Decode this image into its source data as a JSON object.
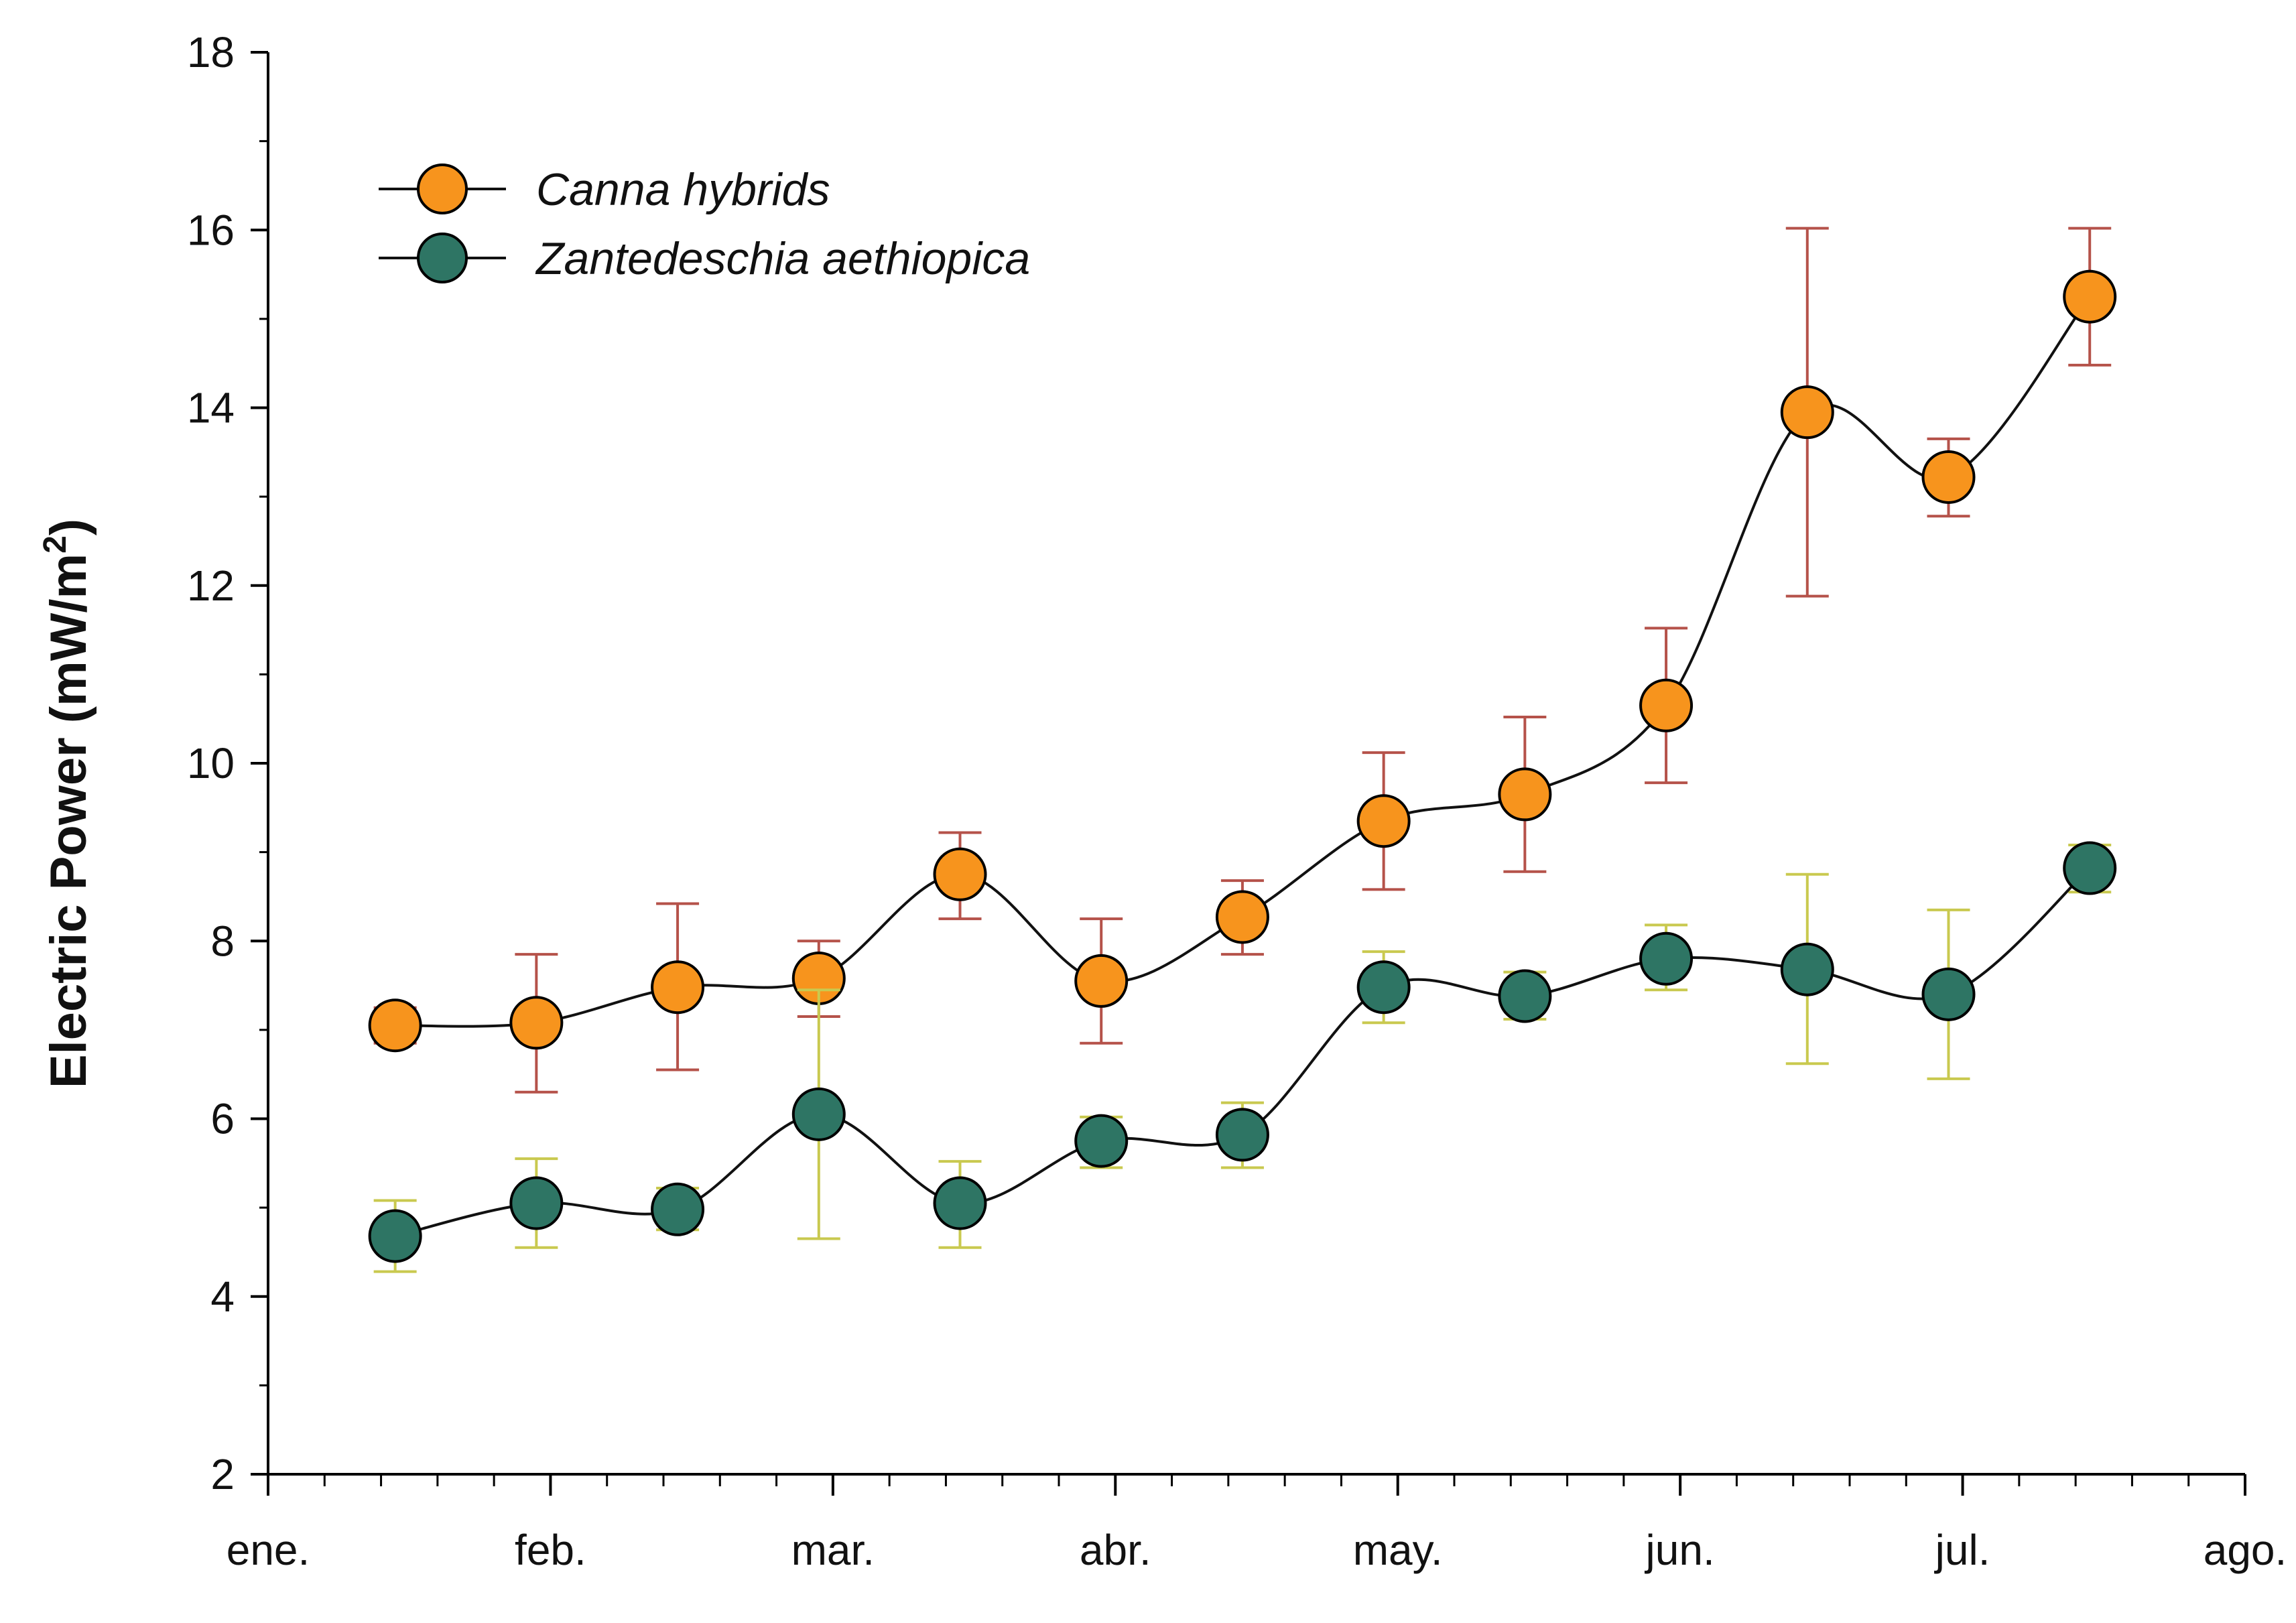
{
  "chart_data": {
    "type": "line",
    "title": "",
    "xlabel": "",
    "ylabel": "Electric Power (mW/m",
    "ylabel_sup": "2",
    "ylabel_close": ")",
    "ylim": [
      2,
      18
    ],
    "yticks": [
      2,
      4,
      6,
      8,
      10,
      12,
      14,
      16,
      18
    ],
    "x_range": [
      0,
      7
    ],
    "month_labels": [
      "ene.",
      "feb.",
      "mar.",
      "abr.",
      "may.",
      "jun.",
      "jul.",
      "ago."
    ],
    "legend_position": "top-left",
    "series": [
      {
        "name": "Canna hybrids",
        "color": "#f7941d",
        "error_color": "#b5524a",
        "x": [
          0.45,
          0.95,
          1.45,
          1.95,
          2.45,
          2.95,
          3.45,
          3.95,
          4.45,
          4.95,
          5.45,
          5.95,
          6.45
        ],
        "values": [
          7.05,
          7.08,
          7.48,
          7.58,
          8.75,
          7.55,
          8.27,
          9.35,
          9.65,
          10.65,
          13.95,
          13.22,
          15.25
        ],
        "err_low": [
          6.85,
          6.3,
          6.55,
          7.15,
          8.25,
          6.85,
          7.85,
          8.58,
          8.78,
          9.78,
          11.88,
          12.78,
          14.48
        ],
        "err_high": [
          7.25,
          7.85,
          8.42,
          8.0,
          9.22,
          8.25,
          8.68,
          10.12,
          10.52,
          11.52,
          16.02,
          13.65,
          16.02
        ]
      },
      {
        "name": "Zantedeschia aethiopica",
        "color": "#2e7564",
        "error_color": "#c9c94f",
        "x": [
          0.45,
          0.95,
          1.45,
          1.95,
          2.45,
          2.95,
          3.45,
          3.95,
          4.45,
          4.95,
          5.45,
          5.95,
          6.45
        ],
        "values": [
          4.68,
          5.05,
          4.98,
          6.05,
          5.05,
          5.75,
          5.82,
          7.48,
          7.38,
          7.8,
          7.68,
          7.4,
          8.82
        ],
        "err_low": [
          4.28,
          4.55,
          4.75,
          4.65,
          4.55,
          5.45,
          5.45,
          7.08,
          7.12,
          7.45,
          6.62,
          6.45,
          8.55
        ],
        "err_high": [
          5.08,
          5.55,
          5.22,
          7.45,
          5.52,
          6.02,
          6.18,
          7.88,
          7.65,
          8.18,
          8.75,
          8.35,
          9.08
        ]
      }
    ]
  }
}
